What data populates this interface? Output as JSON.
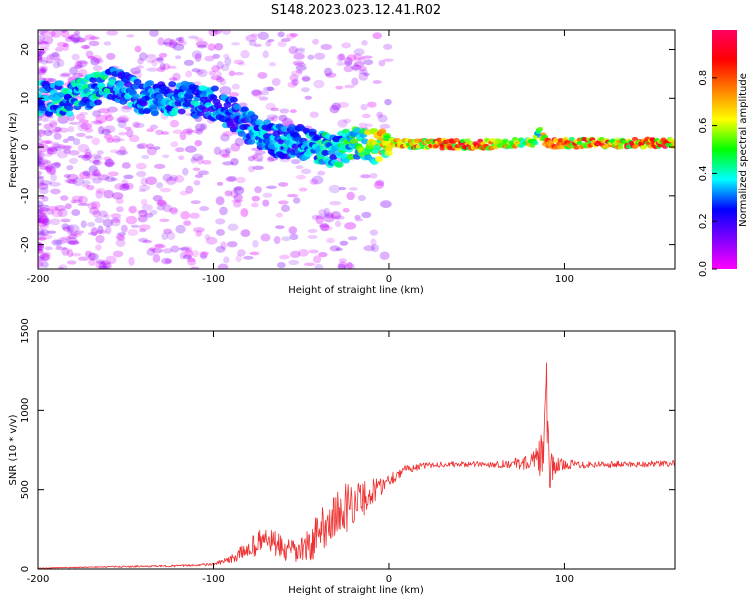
{
  "figure": {
    "title": "S148.2023.023.12.41.R02"
  },
  "chart_data": [
    {
      "type": "heatmap",
      "title": "",
      "xlabel": "Height of straight line (km)",
      "ylabel": "Frequency (Hz)",
      "xlim": [
        -200,
        163
      ],
      "ylim": [
        -25,
        24
      ],
      "xticks": [
        -200,
        -100,
        0,
        100
      ],
      "yticks": [
        -20,
        -10,
        0,
        10,
        20
      ],
      "colorbar": {
        "label": "Normalized spectral amplitude",
        "range": [
          0,
          1
        ],
        "ticks": [
          "0.0",
          "0.2",
          "0.4",
          "0.6",
          "0.8"
        ],
        "placement": "right",
        "stops": [
          "#ff00ff",
          "#8000ff",
          "#0000ff",
          "#00ffff",
          "#00ff00",
          "#ffff00",
          "#ff8000",
          "#ff0000",
          "#ff0060"
        ]
      },
      "ridge": {
        "x": [
          -200,
          -180,
          -160,
          -150,
          -140,
          -120,
          -100,
          -90,
          -80,
          -70,
          -60,
          -50,
          -40,
          -30,
          -20,
          -10,
          0,
          50,
          82,
          86,
          90,
          163
        ],
        "frequency": [
          10,
          10,
          13,
          12,
          10,
          10,
          9,
          7,
          4,
          2,
          1,
          1,
          0,
          -1,
          1,
          0,
          0.8,
          0.5,
          1,
          3,
          0.8,
          0.8
        ],
        "amplitude": [
          0.35,
          0.4,
          0.4,
          0.35,
          0.35,
          0.35,
          0.35,
          0.3,
          0.35,
          0.35,
          0.35,
          0.35,
          0.4,
          0.4,
          0.5,
          0.6,
          0.75,
          0.85,
          0.6,
          0.5,
          0.8,
          0.85
        ]
      }
    },
    {
      "type": "line",
      "title": "",
      "xlabel": "Height of straight line (km)",
      "ylabel": "SNR (10 * v/v)",
      "xlim": [
        -200,
        163
      ],
      "ylim": [
        0,
        1500
      ],
      "xticks": [
        -200,
        -100,
        0,
        100
      ],
      "yticks": [
        0,
        500,
        1000,
        1500
      ],
      "color": "#ee3030",
      "series": [
        {
          "x": [
            -200,
            -180,
            -150,
            -120,
            -100,
            -90,
            -80,
            -75,
            -70,
            -65,
            -60,
            -55,
            -50,
            -45,
            -40,
            -35,
            -30,
            -25,
            -20,
            -15,
            -10,
            -5,
            0,
            5,
            10,
            20,
            30,
            40,
            50,
            60,
            70,
            80,
            85,
            88,
            90,
            91,
            92,
            94,
            100,
            120,
            140,
            163
          ],
          "y": [
            5,
            10,
            15,
            20,
            30,
            60,
            130,
            160,
            190,
            160,
            120,
            100,
            120,
            150,
            230,
            300,
            330,
            380,
            430,
            440,
            480,
            520,
            560,
            600,
            630,
            650,
            660,
            660,
            660,
            660,
            665,
            670,
            680,
            760,
            1000,
            800,
            560,
            650,
            660,
            660,
            660,
            665
          ],
          "noise": [
            2,
            3,
            5,
            6,
            8,
            25,
            60,
            80,
            80,
            80,
            80,
            80,
            90,
            110,
            130,
            150,
            160,
            160,
            140,
            120,
            90,
            60,
            50,
            35,
            25,
            20,
            18,
            18,
            18,
            20,
            30,
            50,
            100,
            160,
            400,
            300,
            180,
            60,
            30,
            22,
            20,
            20
          ]
        }
      ]
    }
  ]
}
